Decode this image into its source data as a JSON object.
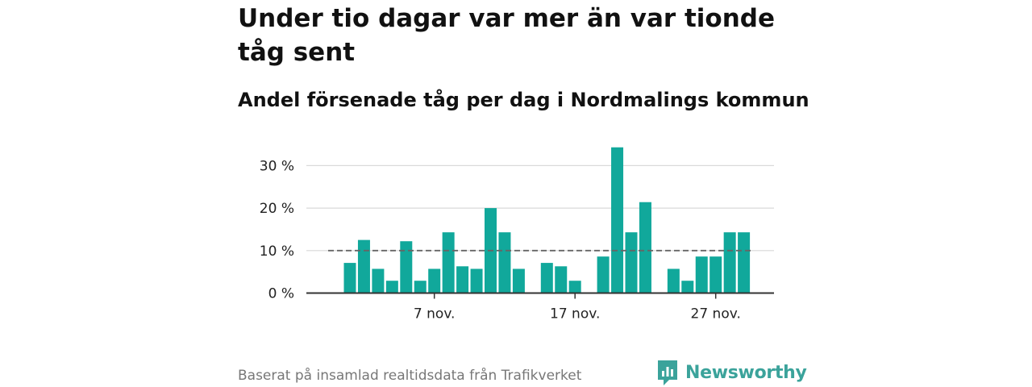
{
  "title": "Under tio dagar var mer än var tionde tåg sent",
  "subtitle": "Andel försenade tåg per dag i Nordmalings kommun",
  "footer": "Baserat på insamlad realtidsdata från Trafikverket",
  "brand": {
    "name": "Newsworthy",
    "icon": "newsworthy-logo-icon",
    "color": "#3ba39b"
  },
  "colors": {
    "bar": "#11a89b",
    "reference_line": "#666666",
    "grid": "#d9d9d9",
    "axis": "#333333"
  },
  "chart_data": {
    "type": "bar",
    "title": "",
    "xlabel": "",
    "ylabel": "",
    "x_axis": "day of month (November)",
    "x": [
      1,
      2,
      3,
      4,
      5,
      6,
      7,
      8,
      9,
      10,
      11,
      12,
      13,
      14,
      15,
      16,
      17,
      18,
      19,
      20,
      21,
      22,
      23,
      24,
      25,
      26,
      27,
      28,
      29,
      30
    ],
    "values": [
      7.1,
      12.5,
      5.7,
      2.9,
      12.2,
      2.9,
      5.7,
      14.3,
      6.3,
      5.7,
      20.0,
      14.3,
      5.7,
      null,
      7.1,
      6.3,
      2.9,
      null,
      8.6,
      34.3,
      14.3,
      21.4,
      null,
      5.7,
      2.9,
      8.6,
      8.6,
      14.3,
      14.3,
      null
    ],
    "ylim": [
      0,
      35
    ],
    "y_ticks": [
      0,
      10,
      20,
      30
    ],
    "y_tick_labels": [
      "0 %",
      "10 %",
      "20 %",
      "30 %"
    ],
    "x_ticks": [
      7,
      17,
      27
    ],
    "x_tick_labels": [
      "7 nov.",
      "17 nov.",
      "27 nov."
    ],
    "reference_line": 10,
    "grid": true,
    "legend": "none"
  }
}
